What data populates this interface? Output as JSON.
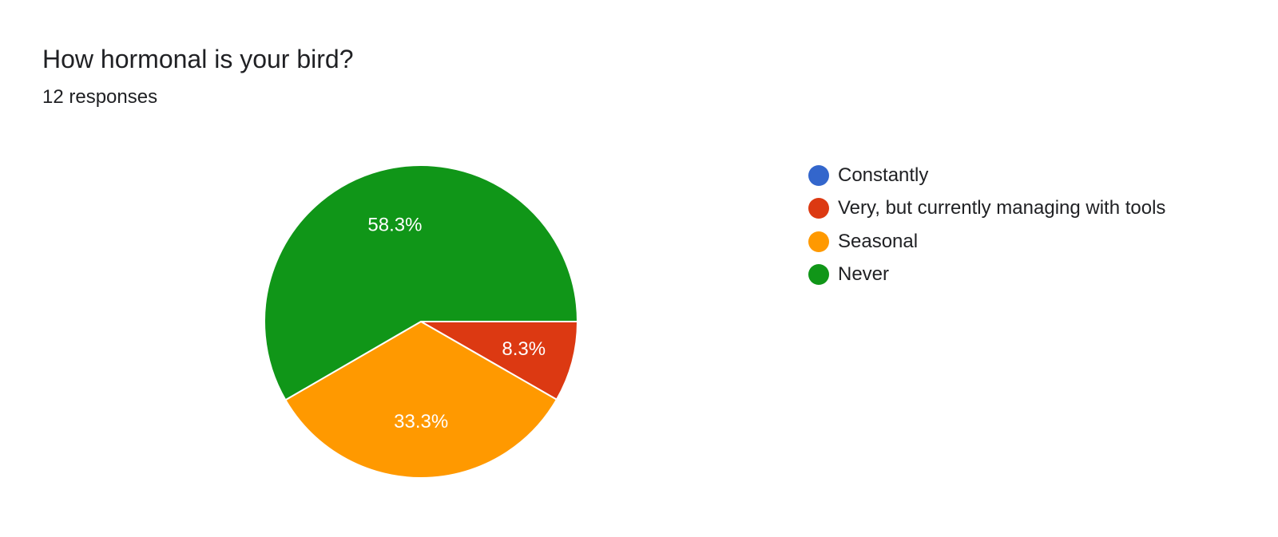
{
  "question": {
    "title": "How hormonal is your bird?",
    "responses": "12 responses"
  },
  "chart_data": {
    "type": "pie",
    "title": "How hormonal is your bird?",
    "subtitle": "12 responses",
    "legend_position": "right",
    "slices": [
      {
        "label": "Constantly",
        "value": 0,
        "percent_label": "",
        "color": "#3366cc"
      },
      {
        "label": "Very, but currently managing with tools",
        "value": 8.3,
        "percent_label": "8.3%",
        "color": "#dc3912"
      },
      {
        "label": "Seasonal",
        "value": 33.3,
        "percent_label": "33.3%",
        "color": "#ff9900"
      },
      {
        "label": "Never",
        "value": 58.3,
        "percent_label": "58.3%",
        "color": "#109618"
      }
    ]
  }
}
